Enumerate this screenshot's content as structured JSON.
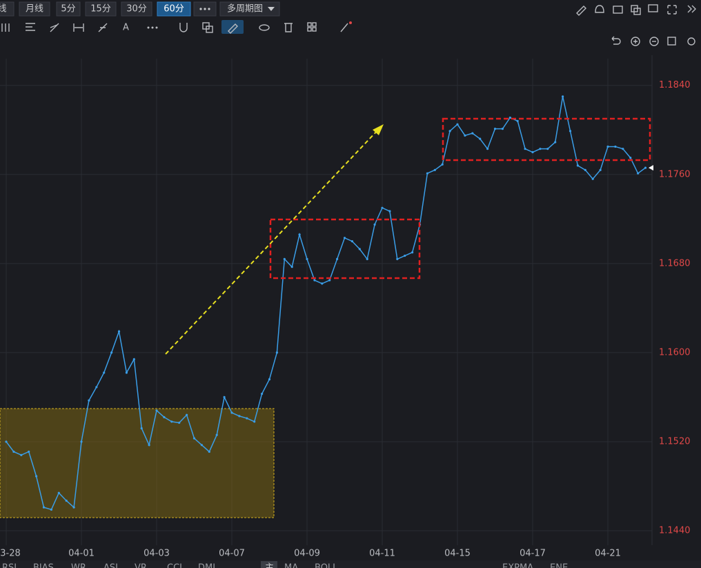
{
  "toolbar": {
    "tabs": [
      "线",
      "月线",
      "5分",
      "15分",
      "30分",
      "60分"
    ],
    "active_tab": "60分",
    "multi_period": "多周期图",
    "text_tool": "A"
  },
  "indicator_bar": {
    "left": [
      "RSI",
      "BIAS",
      "WR",
      "ASI",
      "VR",
      "CCI",
      "DMI"
    ],
    "main": "主",
    "right": [
      "MA",
      "BOLL",
      "EXPMA",
      "ENE"
    ]
  },
  "chart_data": {
    "type": "line",
    "categories": [
      "3-28",
      null,
      null,
      null,
      null,
      null,
      null,
      null,
      null,
      null,
      "04-01",
      null,
      null,
      null,
      null,
      null,
      null,
      null,
      null,
      null,
      "04-03",
      null,
      null,
      null,
      null,
      null,
      null,
      null,
      null,
      null,
      "04-07",
      null,
      null,
      null,
      null,
      null,
      null,
      null,
      null,
      null,
      "04-09",
      null,
      null,
      null,
      null,
      null,
      null,
      null,
      null,
      null,
      "04-11",
      null,
      null,
      null,
      null,
      null,
      null,
      null,
      null,
      null,
      "04-15",
      null,
      null,
      null,
      null,
      null,
      null,
      null,
      null,
      null,
      "04-17",
      null,
      null,
      null,
      null,
      null,
      null,
      null,
      null,
      null,
      "04-21",
      null,
      null,
      null,
      null,
      null
    ],
    "values": [
      1.152,
      1.1511,
      1.1508,
      1.1511,
      1.1489,
      1.1461,
      1.1459,
      1.1474,
      1.1467,
      1.1461,
      1.152,
      1.1557,
      1.1569,
      1.1582,
      1.16,
      1.1619,
      1.1582,
      1.1594,
      1.1532,
      1.1517,
      1.1548,
      1.1542,
      1.1538,
      1.1537,
      1.1544,
      1.1523,
      1.1517,
      1.1511,
      1.1526,
      1.156,
      1.1546,
      1.1543,
      1.1541,
      1.1538,
      1.1563,
      1.1576,
      1.16,
      1.1684,
      1.1677,
      1.1706,
      1.1684,
      1.1665,
      1.1662,
      1.1665,
      1.1684,
      1.1703,
      1.17,
      1.1693,
      1.1684,
      1.1715,
      1.173,
      1.1727,
      1.1684,
      1.1687,
      1.169,
      1.1715,
      1.1761,
      1.1764,
      1.1769,
      1.1799,
      1.1805,
      1.1795,
      1.1797,
      1.1792,
      1.1783,
      1.1801,
      1.1801,
      1.1811,
      1.1808,
      1.1783,
      1.178,
      1.1783,
      1.1783,
      1.1789,
      1.183,
      1.1799,
      1.1768,
      1.1764,
      1.1756,
      1.1764,
      1.1785,
      1.1785,
      1.1783,
      1.1775,
      1.1761,
      1.1766
    ],
    "color": "#3a9ee8",
    "ylim": [
      1.1427,
      1.1864
    ],
    "yticks": [
      {
        "value": 1.184,
        "label": "1.1840"
      },
      {
        "value": 1.176,
        "label": "1.1760"
      },
      {
        "value": 1.168,
        "label": "1.1680"
      },
      {
        "value": 1.16,
        "label": "1.1600"
      },
      {
        "value": 1.152,
        "label": "1.1520"
      },
      {
        "value": 1.144,
        "label": "1.1440"
      }
    ],
    "grid": true
  }
}
